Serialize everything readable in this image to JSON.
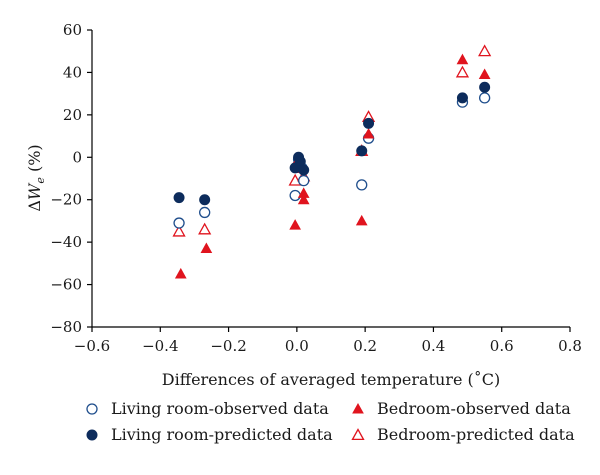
{
  "chart_data": {
    "type": "scatter",
    "title": "",
    "xlabel": "Differences of averaged temperature (˚C)",
    "ylabel_parts": {
      "delta": "Δ",
      "var": "W",
      "sub": "e",
      "unit": " (%)"
    },
    "xlim": [
      -0.6,
      0.8
    ],
    "ylim": [
      -80,
      60
    ],
    "xticks": [
      -0.6,
      -0.4,
      -0.2,
      0.0,
      0.2,
      0.4,
      0.6,
      0.8
    ],
    "yticks": [
      -80,
      -60,
      -40,
      -20,
      0,
      20,
      40,
      60
    ],
    "xtick_labels": [
      "−0.6",
      "−0.4",
      "−0.2",
      "0.0",
      "0.2",
      "0.4",
      "0.6",
      "0.8"
    ],
    "ytick_labels": [
      "−80",
      "−60",
      "−40",
      "−20",
      "0",
      "20",
      "40",
      "60"
    ],
    "grid": false,
    "legend_position": "bottom",
    "series": [
      {
        "name": "Living room-observed data",
        "marker": "circle-open",
        "color": "#1f4e8c",
        "points": [
          [
            -0.345,
            -31
          ],
          [
            -0.27,
            -26
          ],
          [
            -0.005,
            -18
          ],
          [
            0.005,
            -1
          ],
          [
            0.015,
            -5
          ],
          [
            0.02,
            -11
          ],
          [
            0.19,
            -13
          ],
          [
            0.21,
            9
          ],
          [
            0.485,
            26
          ],
          [
            0.55,
            28
          ]
        ]
      },
      {
        "name": "Living room-predicted data",
        "marker": "circle-filled",
        "color": "#0d2c5c",
        "points": [
          [
            -0.345,
            -19
          ],
          [
            -0.27,
            -20
          ],
          [
            -0.005,
            -5
          ],
          [
            0.005,
            0
          ],
          [
            0.01,
            -2
          ],
          [
            0.02,
            -6
          ],
          [
            0.19,
            3
          ],
          [
            0.21,
            16
          ],
          [
            0.485,
            28
          ],
          [
            0.55,
            33
          ]
        ]
      },
      {
        "name": "Bedroom-observed data",
        "marker": "triangle-filled",
        "color": "#e0141e",
        "points": [
          [
            -0.34,
            -55
          ],
          [
            -0.265,
            -43
          ],
          [
            -0.005,
            -32
          ],
          [
            0.005,
            -1
          ],
          [
            0.02,
            -17
          ],
          [
            0.02,
            -20
          ],
          [
            0.19,
            -30
          ],
          [
            0.21,
            11
          ],
          [
            0.485,
            46
          ],
          [
            0.55,
            39
          ]
        ]
      },
      {
        "name": "Bedroom-predicted data",
        "marker": "triangle-open",
        "color": "#e0141e",
        "points": [
          [
            -0.345,
            -35
          ],
          [
            -0.27,
            -34
          ],
          [
            -0.005,
            -11
          ],
          [
            0.005,
            -1
          ],
          [
            0.015,
            -5
          ],
          [
            0.02,
            -9
          ],
          [
            0.19,
            3
          ],
          [
            0.21,
            19
          ],
          [
            0.485,
            40
          ],
          [
            0.55,
            50
          ]
        ]
      }
    ]
  }
}
